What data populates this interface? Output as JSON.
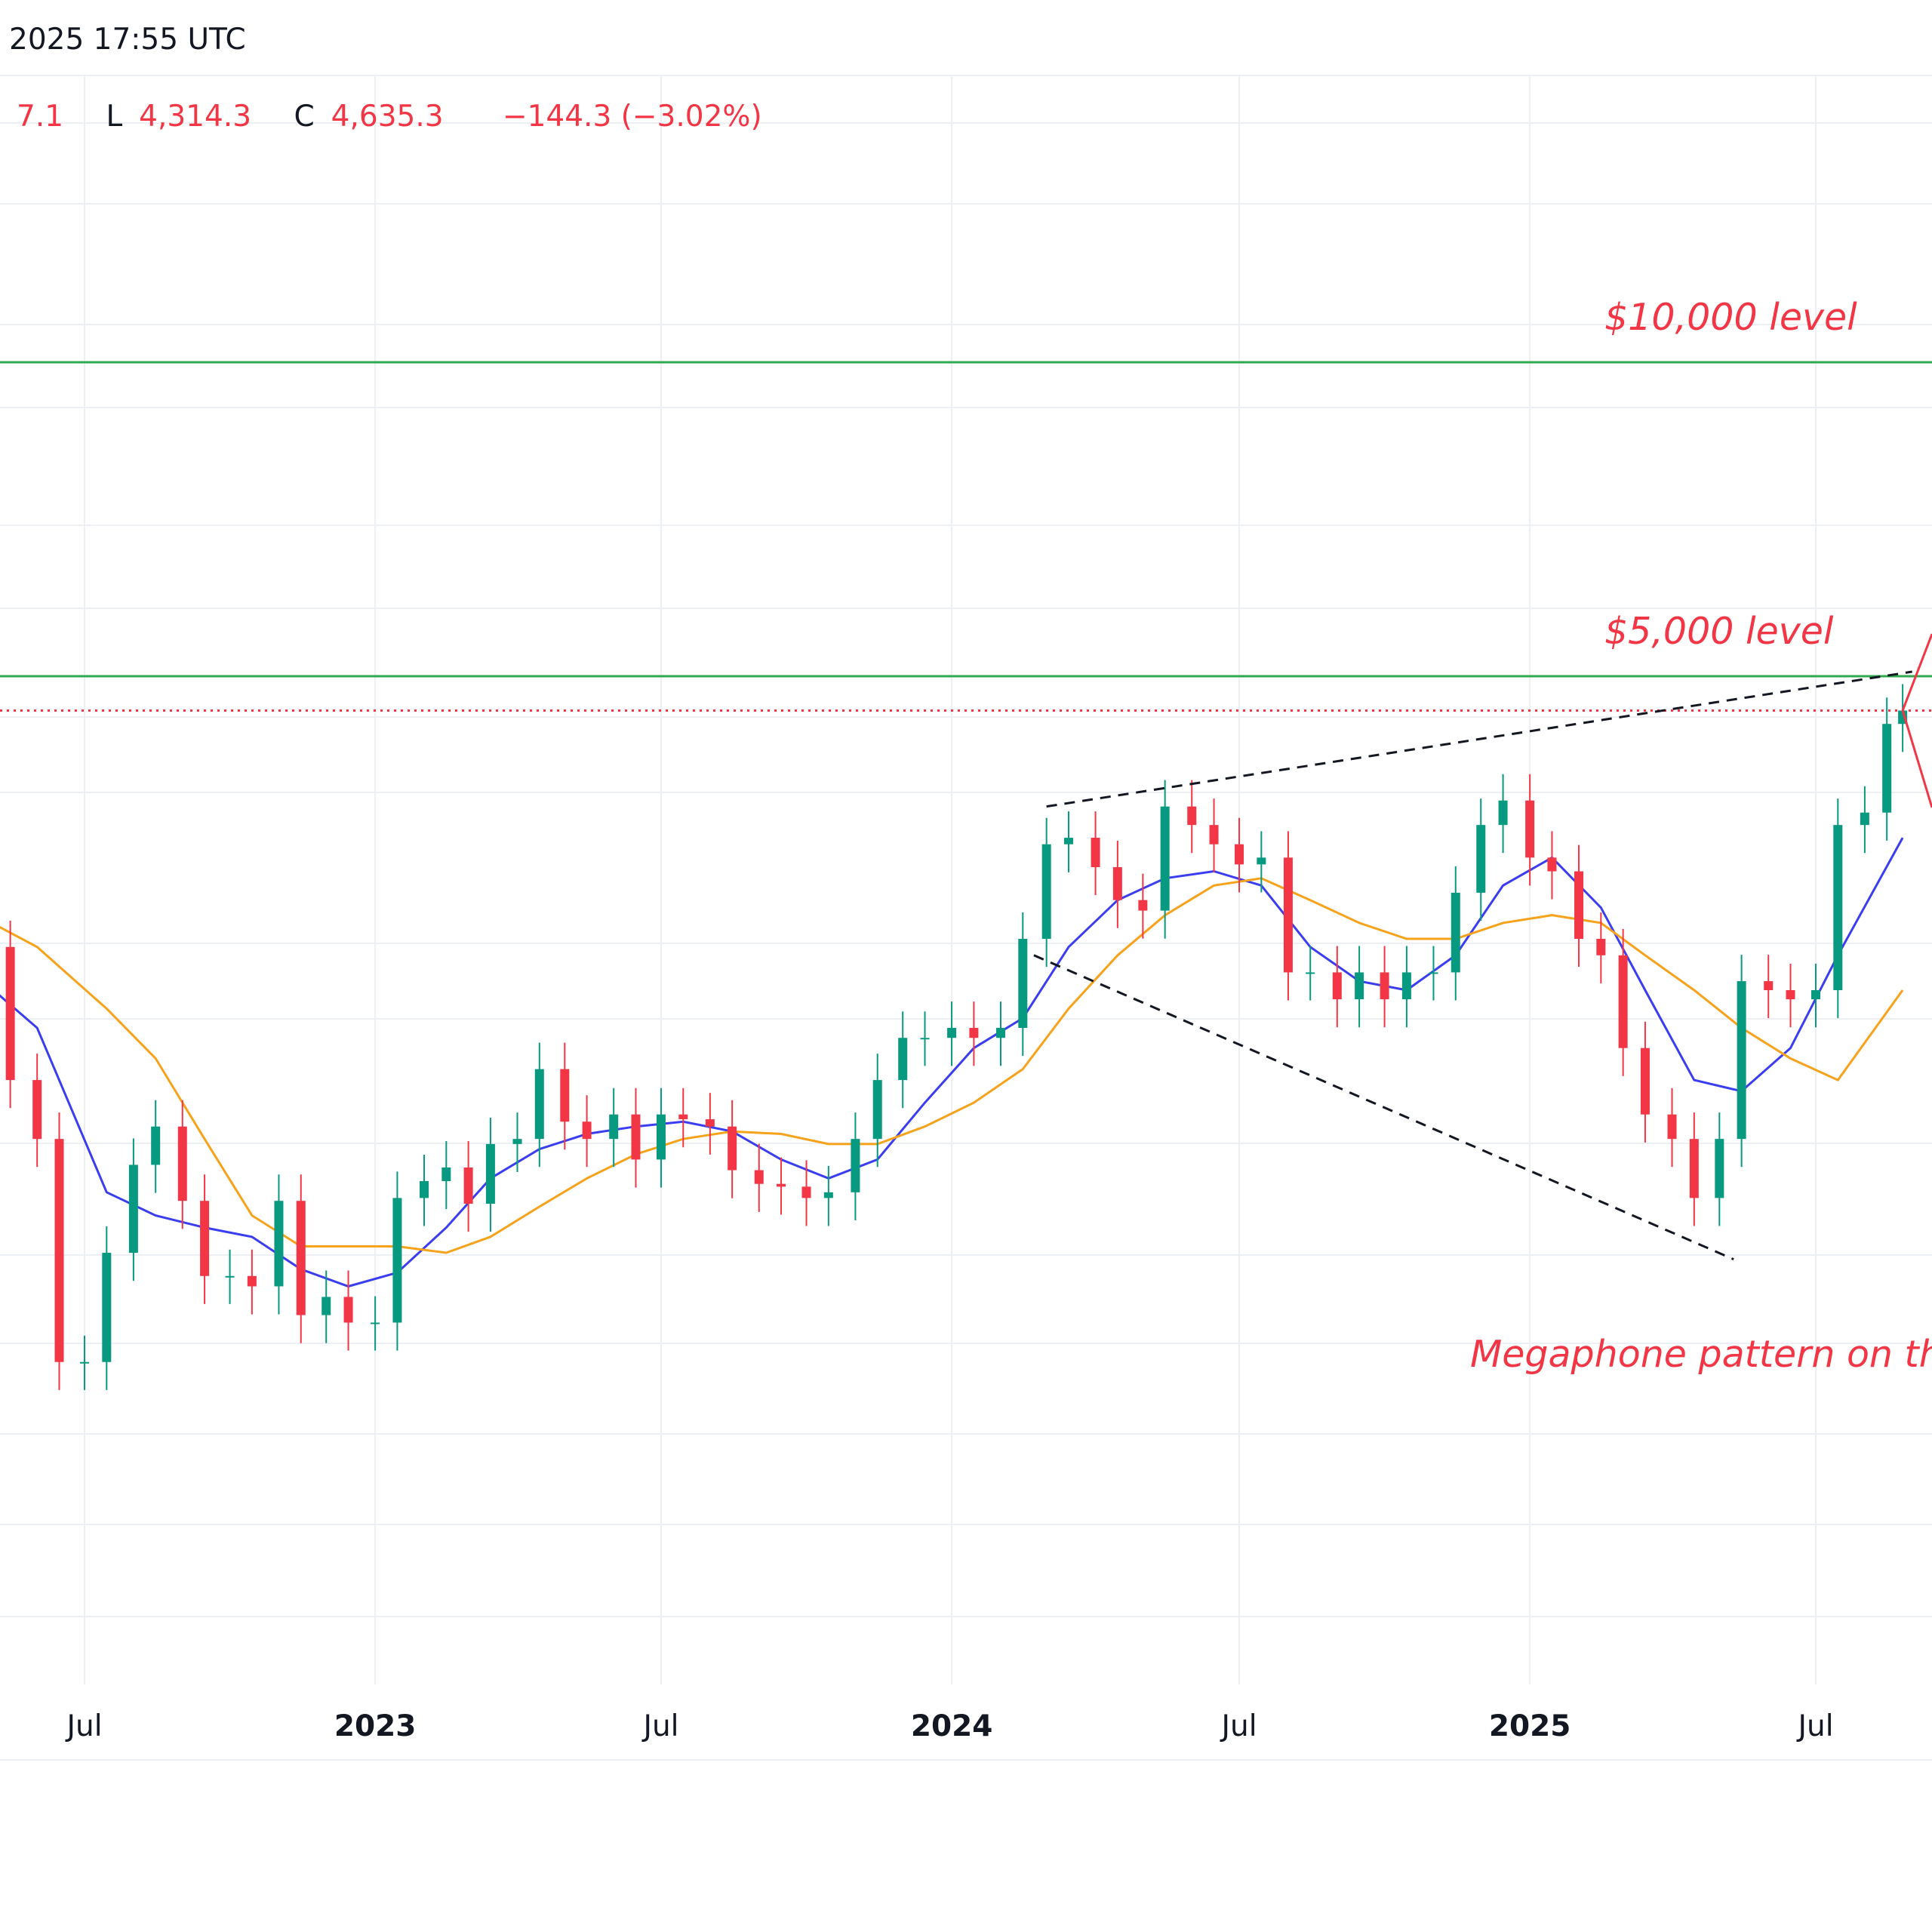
{
  "header": {
    "time": "2025 17:55 UTC",
    "ohlc": [
      {
        "key": "",
        "value": "7.1"
      },
      {
        "key": "L",
        "value": "4,314.3"
      },
      {
        "key": "C",
        "value": "4,635.3"
      },
      {
        "key": "",
        "value": "−144.3 (−3.02%)"
      }
    ]
  },
  "annotations": {
    "level_10000": "$10,000 level",
    "level_5000": "$5,000 level",
    "megaphone": "Megaphone pattern on the"
  },
  "colors": {
    "up": "#089981",
    "down": "#f23645",
    "ma_fast": "#3a3df0",
    "ma_slow": "#f7a21b",
    "level_line": "#2fa84f",
    "price_line": "#f23645",
    "trendline": "#131722",
    "grid": "#eceff3"
  },
  "chart_data": {
    "type": "line",
    "title": "",
    "xlabel": "",
    "ylabel": "",
    "x_range": [
      "2022-04",
      "2025-08-31"
    ],
    "x_tick_labels": [
      {
        "label": "Jul",
        "date": "2022-07-01",
        "bold": false
      },
      {
        "label": "2023",
        "date": "2023-01-01",
        "bold": true
      },
      {
        "label": "Jul",
        "date": "2023-07-01",
        "bold": false
      },
      {
        "label": "2024",
        "date": "2024-01-01",
        "bold": true
      },
      {
        "label": "Jul",
        "date": "2024-07-01",
        "bold": false
      },
      {
        "label": "2025",
        "date": "2025-01-01",
        "bold": true
      },
      {
        "label": "Jul",
        "date": "2025-07-01",
        "bold": false
      }
    ],
    "log_scale": true,
    "grid": true,
    "horizontal_levels": [
      {
        "label": "$10,000 level",
        "value": 10000
      },
      {
        "label": "$5,000 level",
        "value": 5000
      }
    ],
    "last_price": 4635.3,
    "series": [
      {
        "role": "price",
        "points": [
          [
            "2022-04-15",
            2900
          ],
          [
            "2022-05-01",
            2750
          ],
          [
            "2022-05-15",
            2050
          ],
          [
            "2022-06-01",
            1800
          ],
          [
            "2022-06-15",
            1100
          ],
          [
            "2022-07-01",
            1100
          ],
          [
            "2022-07-15",
            1400
          ],
          [
            "2022-08-01",
            1700
          ],
          [
            "2022-08-15",
            1850
          ],
          [
            "2022-09-01",
            1570
          ],
          [
            "2022-09-15",
            1330
          ],
          [
            "2022-10-01",
            1330
          ],
          [
            "2022-10-15",
            1300
          ],
          [
            "2022-11-01",
            1570
          ],
          [
            "2022-11-15",
            1220
          ],
          [
            "2022-12-01",
            1270
          ],
          [
            "2022-12-15",
            1200
          ],
          [
            "2023-01-01",
            1200
          ],
          [
            "2023-01-15",
            1580
          ],
          [
            "2023-02-01",
            1640
          ],
          [
            "2023-02-15",
            1690
          ],
          [
            "2023-03-01",
            1560
          ],
          [
            "2023-03-15",
            1780
          ],
          [
            "2023-04-01",
            1800
          ],
          [
            "2023-04-15",
            2100
          ],
          [
            "2023-05-01",
            1870
          ],
          [
            "2023-05-15",
            1800
          ],
          [
            "2023-06-01",
            1900
          ],
          [
            "2023-06-15",
            1720
          ],
          [
            "2023-07-01",
            1900
          ],
          [
            "2023-07-15",
            1880
          ],
          [
            "2023-08-01",
            1850
          ],
          [
            "2023-08-15",
            1680
          ],
          [
            "2023-09-01",
            1630
          ],
          [
            "2023-09-15",
            1620
          ],
          [
            "2023-10-01",
            1580
          ],
          [
            "2023-10-15",
            1600
          ],
          [
            "2023-11-01",
            1800
          ],
          [
            "2023-11-15",
            2050
          ],
          [
            "2023-12-01",
            2250
          ],
          [
            "2023-12-15",
            2250
          ],
          [
            "2024-01-01",
            2300
          ],
          [
            "2024-01-15",
            2250
          ],
          [
            "2024-02-01",
            2300
          ],
          [
            "2024-02-15",
            2800
          ],
          [
            "2024-03-01",
            3450
          ],
          [
            "2024-03-15",
            3500
          ],
          [
            "2024-04-01",
            3280
          ],
          [
            "2024-04-15",
            3050
          ],
          [
            "2024-05-01",
            2980
          ],
          [
            "2024-05-15",
            3750
          ],
          [
            "2024-06-01",
            3600
          ],
          [
            "2024-06-15",
            3450
          ],
          [
            "2024-07-01",
            3300
          ],
          [
            "2024-07-15",
            3350
          ],
          [
            "2024-08-01",
            2600
          ],
          [
            "2024-08-15",
            2600
          ],
          [
            "2024-09-01",
            2450
          ],
          [
            "2024-09-15",
            2600
          ],
          [
            "2024-10-01",
            2450
          ],
          [
            "2024-10-15",
            2600
          ],
          [
            "2024-11-01",
            2600
          ],
          [
            "2024-11-15",
            3100
          ],
          [
            "2024-12-01",
            3600
          ],
          [
            "2024-12-15",
            3800
          ],
          [
            "2025-01-01",
            3350
          ],
          [
            "2025-01-15",
            3250
          ],
          [
            "2025-02-01",
            2800
          ],
          [
            "2025-02-15",
            2700
          ],
          [
            "2025-03-01",
            2200
          ],
          [
            "2025-03-15",
            1900
          ],
          [
            "2025-04-01",
            1800
          ],
          [
            "2025-04-15",
            1580
          ],
          [
            "2025-05-01",
            1800
          ],
          [
            "2025-05-15",
            2550
          ],
          [
            "2025-06-01",
            2500
          ],
          [
            "2025-06-15",
            2450
          ],
          [
            "2025-07-01",
            2500
          ],
          [
            "2025-07-15",
            3600
          ],
          [
            "2025-08-01",
            3700
          ],
          [
            "2025-08-15",
            4500
          ],
          [
            "2025-08-25",
            4635
          ]
        ]
      },
      {
        "role": "moving-average-fast",
        "points": [
          [
            "2022-04-15",
            2650
          ],
          [
            "2022-06-01",
            2300
          ],
          [
            "2022-07-15",
            1600
          ],
          [
            "2022-08-15",
            1520
          ],
          [
            "2022-09-15",
            1480
          ],
          [
            "2022-10-15",
            1450
          ],
          [
            "2022-11-15",
            1350
          ],
          [
            "2022-12-15",
            1300
          ],
          [
            "2023-01-15",
            1340
          ],
          [
            "2023-02-15",
            1480
          ],
          [
            "2023-03-15",
            1650
          ],
          [
            "2023-04-15",
            1760
          ],
          [
            "2023-05-15",
            1820
          ],
          [
            "2023-06-15",
            1850
          ],
          [
            "2023-07-15",
            1870
          ],
          [
            "2023-08-15",
            1830
          ],
          [
            "2023-09-15",
            1720
          ],
          [
            "2023-10-15",
            1650
          ],
          [
            "2023-11-15",
            1720
          ],
          [
            "2023-12-15",
            1950
          ],
          [
            "2024-01-15",
            2200
          ],
          [
            "2024-02-15",
            2350
          ],
          [
            "2024-03-15",
            2750
          ],
          [
            "2024-04-15",
            3050
          ],
          [
            "2024-05-15",
            3200
          ],
          [
            "2024-06-15",
            3250
          ],
          [
            "2024-07-15",
            3150
          ],
          [
            "2024-08-15",
            2750
          ],
          [
            "2024-09-15",
            2550
          ],
          [
            "2024-10-15",
            2500
          ],
          [
            "2024-11-15",
            2700
          ],
          [
            "2024-12-15",
            3150
          ],
          [
            "2025-01-15",
            3350
          ],
          [
            "2025-02-15",
            3000
          ],
          [
            "2025-03-15",
            2500
          ],
          [
            "2025-04-15",
            2050
          ],
          [
            "2025-05-15",
            2000
          ],
          [
            "2025-06-15",
            2200
          ],
          [
            "2025-07-15",
            2700
          ],
          [
            "2025-08-25",
            3500
          ]
        ]
      },
      {
        "role": "moving-average-slow",
        "points": [
          [
            "2022-04-15",
            3000
          ],
          [
            "2022-06-01",
            2750
          ],
          [
            "2022-07-15",
            2400
          ],
          [
            "2022-08-15",
            2150
          ],
          [
            "2022-09-15",
            1800
          ],
          [
            "2022-10-15",
            1520
          ],
          [
            "2022-11-15",
            1420
          ],
          [
            "2022-12-15",
            1420
          ],
          [
            "2023-01-15",
            1420
          ],
          [
            "2023-02-15",
            1400
          ],
          [
            "2023-03-15",
            1450
          ],
          [
            "2023-04-15",
            1550
          ],
          [
            "2023-05-15",
            1650
          ],
          [
            "2023-06-15",
            1740
          ],
          [
            "2023-07-15",
            1800
          ],
          [
            "2023-08-15",
            1830
          ],
          [
            "2023-09-15",
            1820
          ],
          [
            "2023-10-15",
            1780
          ],
          [
            "2023-11-15",
            1780
          ],
          [
            "2023-12-15",
            1850
          ],
          [
            "2024-01-15",
            1950
          ],
          [
            "2024-02-15",
            2100
          ],
          [
            "2024-03-15",
            2400
          ],
          [
            "2024-04-15",
            2700
          ],
          [
            "2024-05-15",
            2950
          ],
          [
            "2024-06-15",
            3150
          ],
          [
            "2024-07-15",
            3200
          ],
          [
            "2024-08-15",
            3050
          ],
          [
            "2024-09-15",
            2900
          ],
          [
            "2024-10-15",
            2800
          ],
          [
            "2024-11-15",
            2800
          ],
          [
            "2024-12-15",
            2900
          ],
          [
            "2025-01-15",
            2950
          ],
          [
            "2025-02-15",
            2900
          ],
          [
            "2025-03-15",
            2700
          ],
          [
            "2025-04-15",
            2500
          ],
          [
            "2025-05-15",
            2300
          ],
          [
            "2025-06-15",
            2150
          ],
          [
            "2025-07-15",
            2050
          ],
          [
            "2025-08-25",
            2500
          ]
        ]
      }
    ],
    "trendlines": [
      {
        "role": "megaphone-upper",
        "from": [
          "2024-03-01",
          3750
        ],
        "to": [
          "2025-08-31",
          5050
        ],
        "dashed": true
      },
      {
        "role": "megaphone-lower",
        "from": [
          "2024-02-22",
          2700
        ],
        "to": [
          "2025-05-10",
          1380
        ],
        "dashed": true
      }
    ]
  }
}
